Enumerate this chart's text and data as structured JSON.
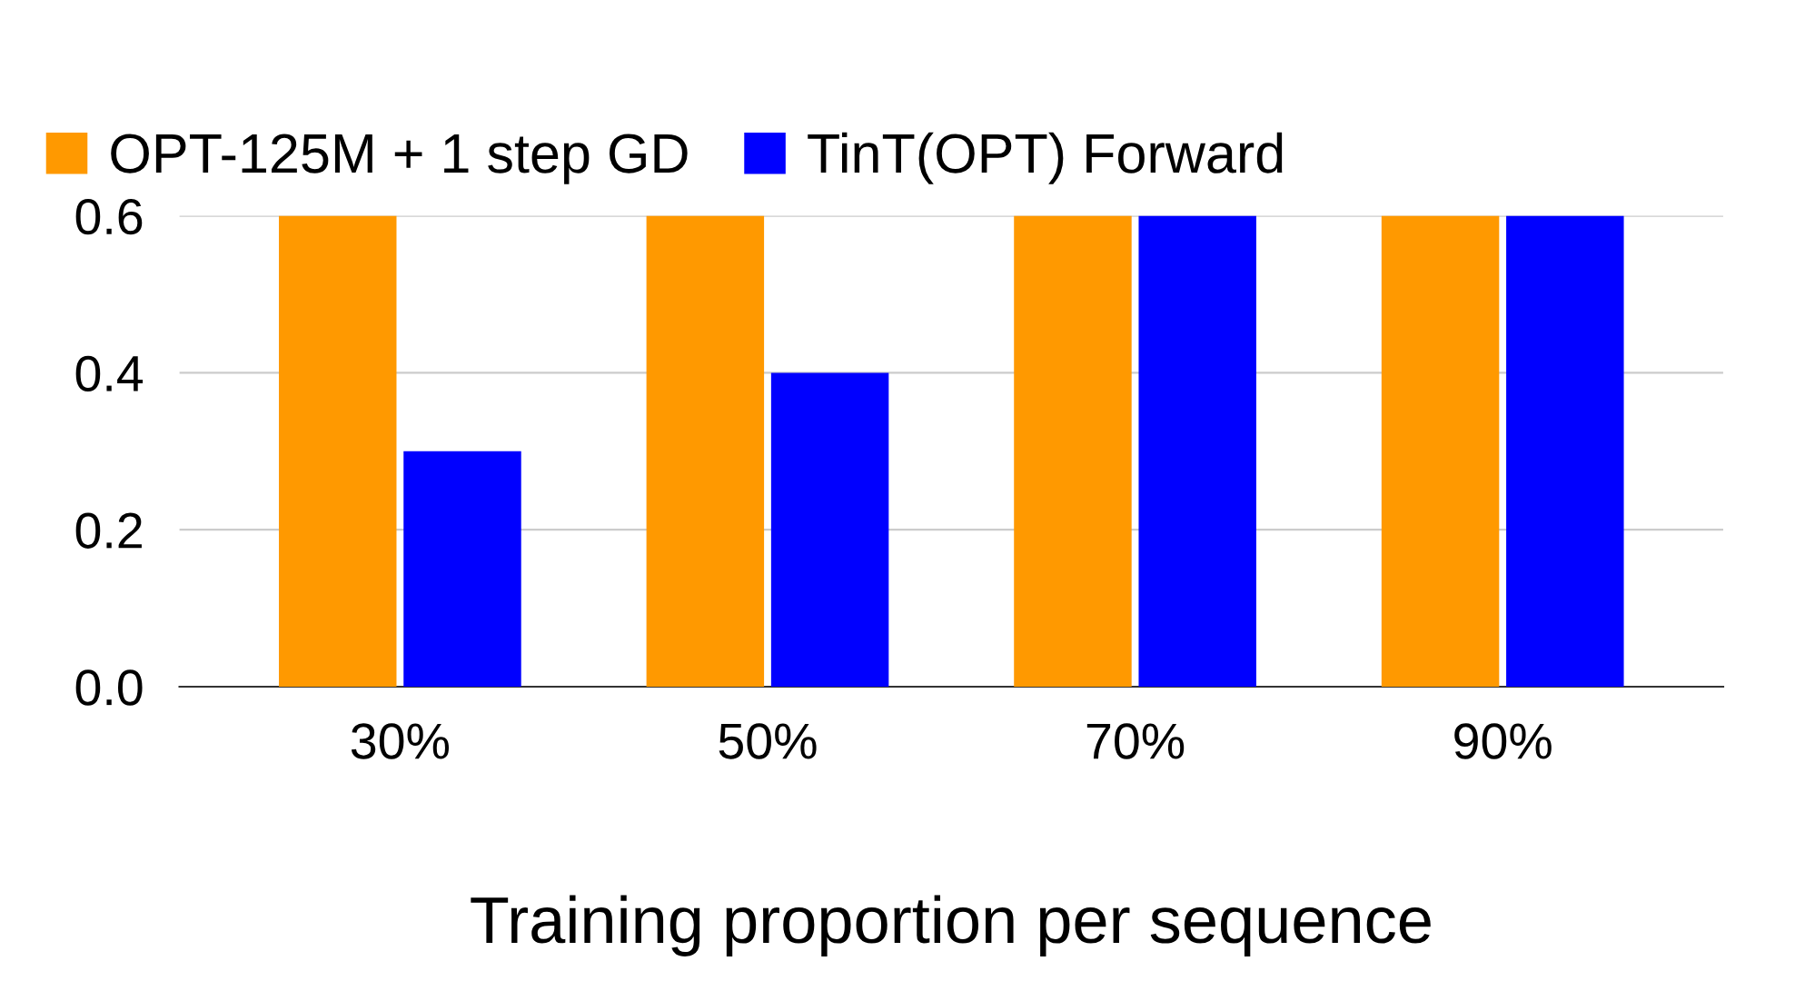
{
  "chart_data": {
    "type": "bar",
    "xlabel": "Training proportion per sequence",
    "categories": [
      "30%",
      "50%",
      "70%",
      "90%"
    ],
    "series": [
      {
        "name": "OPT-125M + 1 step GD",
        "color": "#ff9900",
        "values": [
          0.6,
          0.6,
          0.6,
          0.6
        ]
      },
      {
        "name": "TinT(OPT) Forward",
        "color": "#0000ff",
        "values": [
          0.3,
          0.4,
          0.6,
          0.6
        ]
      }
    ],
    "ylim": [
      0,
      0.6
    ],
    "yticks": [
      {
        "value": 0,
        "label": "0.0"
      },
      0.2,
      0.4,
      0.6
    ],
    "grid": "y",
    "legend": "top left"
  }
}
